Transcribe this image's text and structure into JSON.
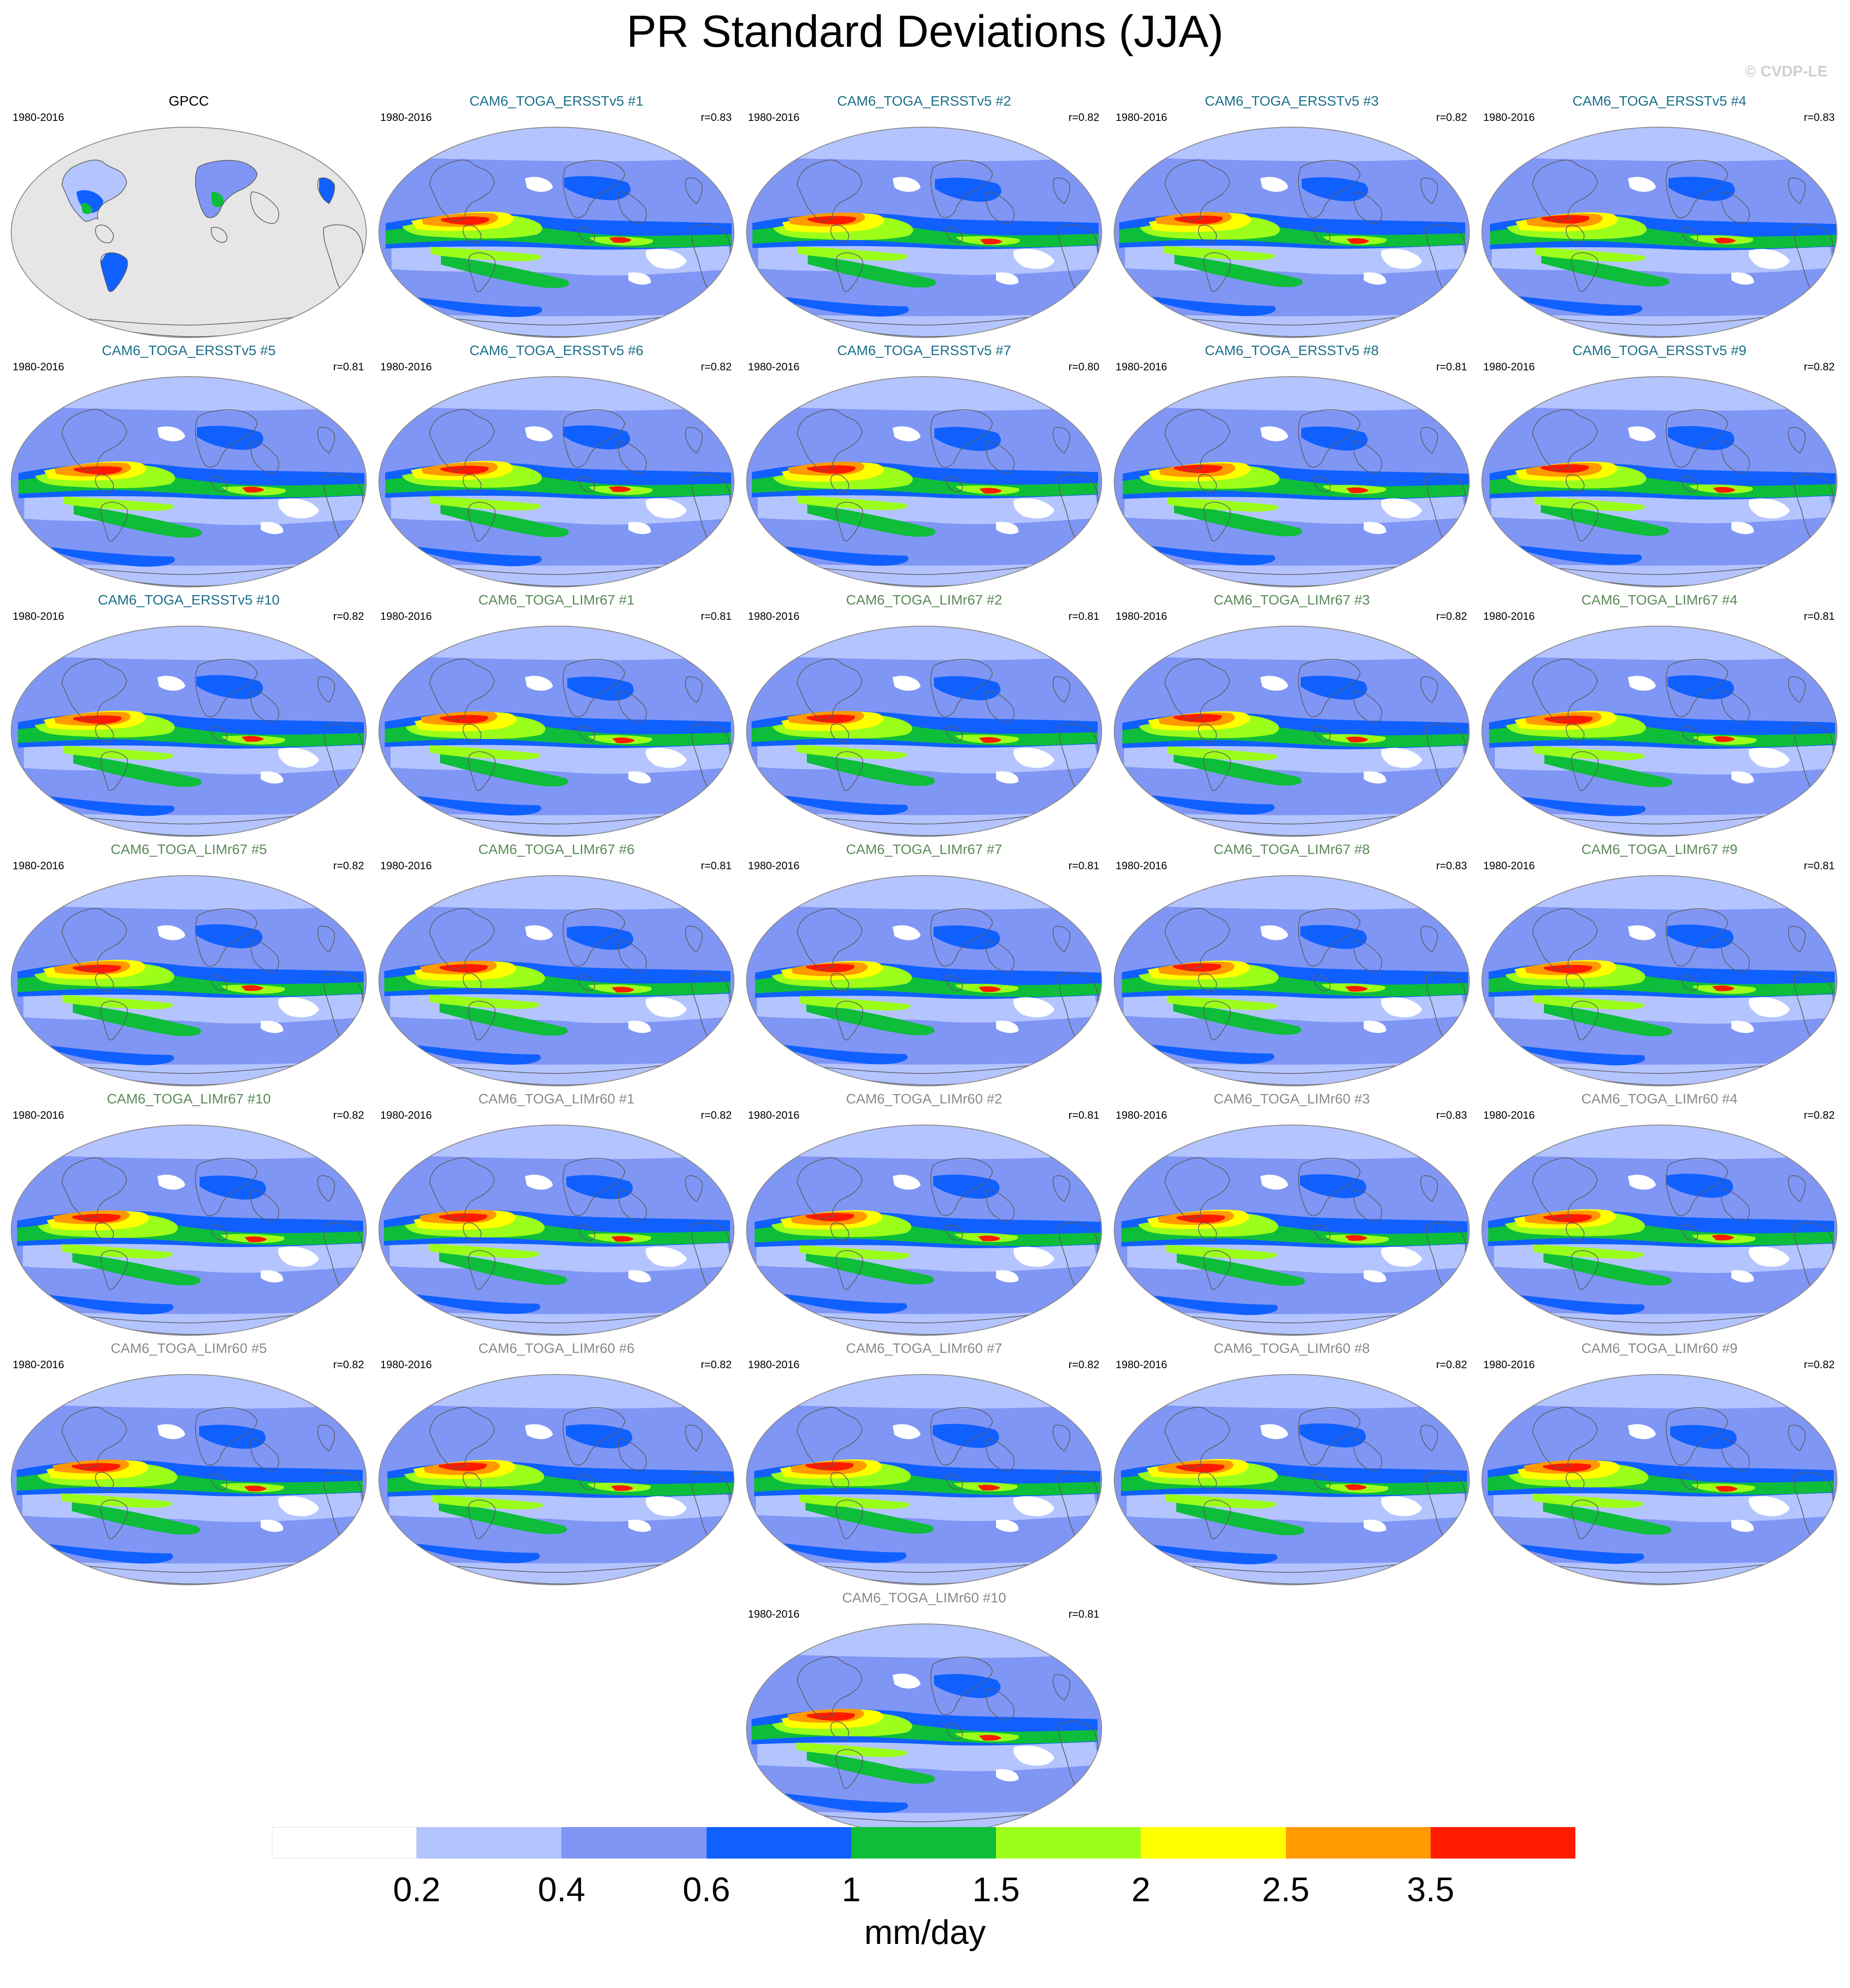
{
  "title": "PR Standard Deviations (JJA)",
  "watermark": "© CVDP-LE",
  "colors": {
    "ersst_title": "#1b6f8a",
    "limr67_title": "#5b8a58",
    "limr60_title": "#8a8a8a",
    "obs_title": "#000000",
    "land": "#e6e6e6",
    "land_edge": "#5a5a5a"
  },
  "panels": [
    {
      "title": "GPCC",
      "period": "1980-2016",
      "r": "",
      "group": "obs"
    },
    {
      "title": "CAM6_TOGA_ERSSTv5 #1",
      "period": "1980-2016",
      "r": "r=0.83",
      "group": "ersst"
    },
    {
      "title": "CAM6_TOGA_ERSSTv5 #2",
      "period": "1980-2016",
      "r": "r=0.82",
      "group": "ersst"
    },
    {
      "title": "CAM6_TOGA_ERSSTv5 #3",
      "period": "1980-2016",
      "r": "r=0.82",
      "group": "ersst"
    },
    {
      "title": "CAM6_TOGA_ERSSTv5 #4",
      "period": "1980-2016",
      "r": "r=0.83",
      "group": "ersst"
    },
    {
      "title": "CAM6_TOGA_ERSSTv5 #5",
      "period": "1980-2016",
      "r": "r=0.81",
      "group": "ersst"
    },
    {
      "title": "CAM6_TOGA_ERSSTv5 #6",
      "period": "1980-2016",
      "r": "r=0.82",
      "group": "ersst"
    },
    {
      "title": "CAM6_TOGA_ERSSTv5 #7",
      "period": "1980-2016",
      "r": "r=0.80",
      "group": "ersst"
    },
    {
      "title": "CAM6_TOGA_ERSSTv5 #8",
      "period": "1980-2016",
      "r": "r=0.81",
      "group": "ersst"
    },
    {
      "title": "CAM6_TOGA_ERSSTv5 #9",
      "period": "1980-2016",
      "r": "r=0.82",
      "group": "ersst"
    },
    {
      "title": "CAM6_TOGA_ERSSTv5 #10",
      "period": "1980-2016",
      "r": "r=0.82",
      "group": "ersst"
    },
    {
      "title": "CAM6_TOGA_LIMr67 #1",
      "period": "1980-2016",
      "r": "r=0.81",
      "group": "limr67"
    },
    {
      "title": "CAM6_TOGA_LIMr67 #2",
      "period": "1980-2016",
      "r": "r=0.81",
      "group": "limr67"
    },
    {
      "title": "CAM6_TOGA_LIMr67 #3",
      "period": "1980-2016",
      "r": "r=0.82",
      "group": "limr67"
    },
    {
      "title": "CAM6_TOGA_LIMr67 #4",
      "period": "1980-2016",
      "r": "r=0.81",
      "group": "limr67"
    },
    {
      "title": "CAM6_TOGA_LIMr67 #5",
      "period": "1980-2016",
      "r": "r=0.82",
      "group": "limr67"
    },
    {
      "title": "CAM6_TOGA_LIMr67 #6",
      "period": "1980-2016",
      "r": "r=0.81",
      "group": "limr67"
    },
    {
      "title": "CAM6_TOGA_LIMr67 #7",
      "period": "1980-2016",
      "r": "r=0.81",
      "group": "limr67"
    },
    {
      "title": "CAM6_TOGA_LIMr67 #8",
      "period": "1980-2016",
      "r": "r=0.83",
      "group": "limr67"
    },
    {
      "title": "CAM6_TOGA_LIMr67 #9",
      "period": "1980-2016",
      "r": "r=0.81",
      "group": "limr67"
    },
    {
      "title": "CAM6_TOGA_LIMr67 #10",
      "period": "1980-2016",
      "r": "r=0.82",
      "group": "limr67"
    },
    {
      "title": "CAM6_TOGA_LIMr60 #1",
      "period": "1980-2016",
      "r": "r=0.82",
      "group": "limr60"
    },
    {
      "title": "CAM6_TOGA_LIMr60 #2",
      "period": "1980-2016",
      "r": "r=0.81",
      "group": "limr60"
    },
    {
      "title": "CAM6_TOGA_LIMr60 #3",
      "period": "1980-2016",
      "r": "r=0.83",
      "group": "limr60"
    },
    {
      "title": "CAM6_TOGA_LIMr60 #4",
      "period": "1980-2016",
      "r": "r=0.82",
      "group": "limr60"
    },
    {
      "title": "CAM6_TOGA_LIMr60 #5",
      "period": "1980-2016",
      "r": "r=0.82",
      "group": "limr60"
    },
    {
      "title": "CAM6_TOGA_LIMr60 #6",
      "period": "1980-2016",
      "r": "r=0.82",
      "group": "limr60"
    },
    {
      "title": "CAM6_TOGA_LIMr60 #7",
      "period": "1980-2016",
      "r": "r=0.82",
      "group": "limr60"
    },
    {
      "title": "CAM6_TOGA_LIMr60 #8",
      "period": "1980-2016",
      "r": "r=0.82",
      "group": "limr60"
    },
    {
      "title": "CAM6_TOGA_LIMr60 #9",
      "period": "1980-2016",
      "r": "r=0.82",
      "group": "limr60"
    },
    {
      "title": "CAM6_TOGA_LIMr60 #10",
      "period": "1980-2016",
      "r": "r=0.81",
      "group": "limr60"
    }
  ],
  "colorbar": {
    "colors": [
      "#ffffff",
      "#b4c4ff",
      "#8096f5",
      "#1060ff",
      "#0ebd3a",
      "#9cff1a",
      "#ffff00",
      "#ff9a00",
      "#ff1a00"
    ],
    "labels": [
      "0.2",
      "0.4",
      "0.6",
      "1",
      "1.5",
      "2",
      "2.5",
      "3.5"
    ],
    "units": "mm/day"
  }
}
